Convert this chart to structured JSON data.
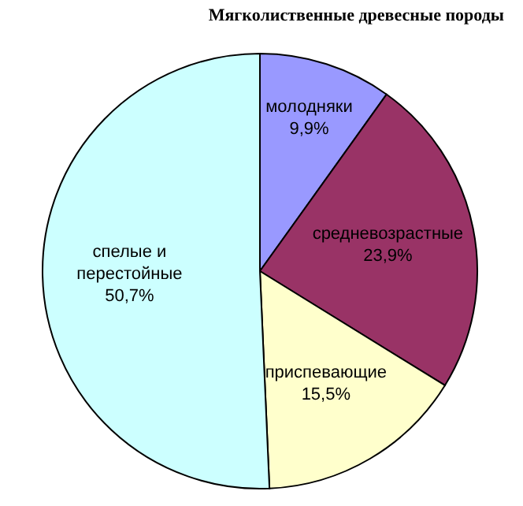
{
  "chart_data": {
    "type": "pie",
    "title": "Мягколиственные древесные породы",
    "categories": [
      "молодняки",
      "средневозрастные",
      "приспевающие",
      "спелые и перестойные"
    ],
    "values": [
      9.9,
      23.9,
      15.5,
      50.7
    ],
    "colors": [
      "#9999ff",
      "#993366",
      "#ffffcc",
      "#ccffff"
    ],
    "value_labels": [
      "9,9%",
      "23,9%",
      "15,5%",
      "50,7%"
    ]
  }
}
